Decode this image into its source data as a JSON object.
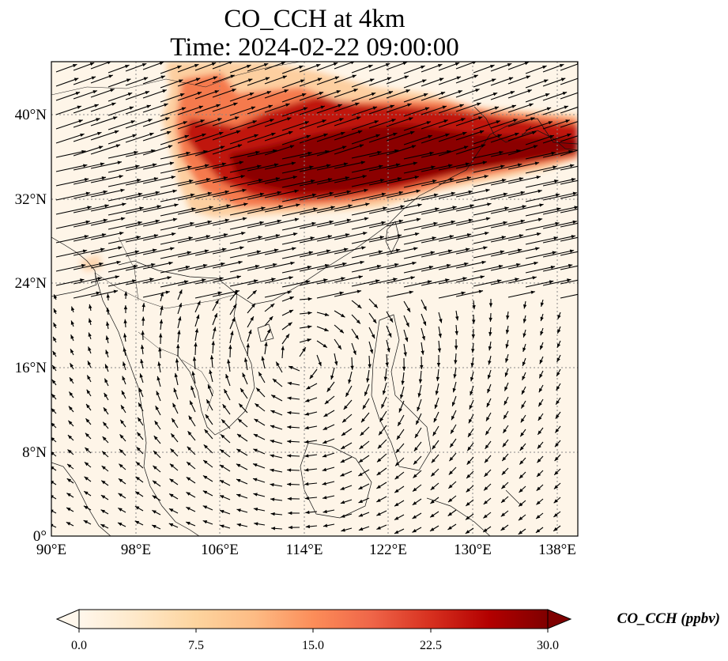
{
  "title": {
    "line1": "CO_CCH at 4km",
    "line2": "Time: 2024-02-22 09:00:00"
  },
  "axes": {
    "lon_ticks": [
      "90°E",
      "98°E",
      "106°E",
      "114°E",
      "122°E",
      "130°E",
      "138°E"
    ],
    "lat_ticks": [
      "0°",
      "8°N",
      "16°N",
      "24°N",
      "32°N",
      "40°N"
    ],
    "lon_range": [
      90,
      140
    ],
    "lat_range": [
      0,
      45
    ],
    "gridlines": "dotted"
  },
  "colorbar": {
    "label": "CO_CCH (ppbv)",
    "ticks": [
      "0.0",
      "7.5",
      "15.0",
      "22.5",
      "30.0"
    ],
    "min": 0,
    "max": 30,
    "extend": "both",
    "colormap": "OrRd",
    "colors": [
      "#fff7ec",
      "#fee8c8",
      "#fdd49e",
      "#fdbb84",
      "#fc8d59",
      "#ef6548",
      "#d7301f",
      "#b30000",
      "#7f0000"
    ]
  },
  "field": {
    "variable": "CO_CCH",
    "units": "ppbv",
    "level": "4km",
    "plume_region": "high concentrations (~25-30 ppbv) along a band from ~102°E to 140°E between ~31°N and 44°N"
  },
  "overlays": [
    "coastlines",
    "country borders",
    "wind vectors"
  ]
}
